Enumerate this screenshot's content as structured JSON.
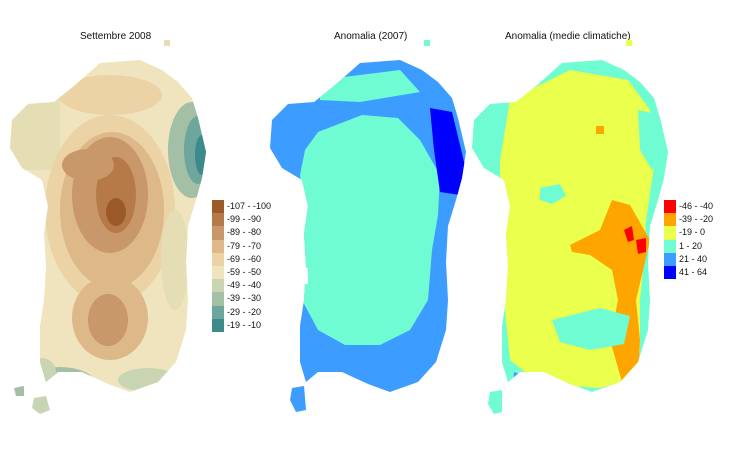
{
  "panels": [
    {
      "title": "Settembre 2008"
    },
    {
      "title": "Anomalia (2007)"
    },
    {
      "title": "Anomalia (medie climatiche)"
    }
  ],
  "legend_precip": {
    "items": [
      {
        "label": "-107 - -100",
        "color": "#9c5a2a"
      },
      {
        "label": "-99 - -90",
        "color": "#b57a48"
      },
      {
        "label": "-89 - -80",
        "color": "#c9986a"
      },
      {
        "label": "-79 - -70",
        "color": "#ddb98a"
      },
      {
        "label": "-69 - -60",
        "color": "#ebd3a6"
      },
      {
        "label": "-59 - -50",
        "color": "#f0e4bf"
      },
      {
        "label": "-49 - -40",
        "color": "#c9d4b3"
      },
      {
        "label": "-39 - -30",
        "color": "#a3bfa5"
      },
      {
        "label": "-29 - -20",
        "color": "#6ea59c"
      },
      {
        "label": "-19 - -10",
        "color": "#3c8a8b"
      }
    ]
  },
  "legend_anomaly": {
    "items": [
      {
        "label": "-46 - -40",
        "color": "#ff0000"
      },
      {
        "label": "-39 - -20",
        "color": "#ffa500"
      },
      {
        "label": "-19 - 0",
        "color": "#ebff4d"
      },
      {
        "label": "1 - 20",
        "color": "#6ffcd2"
      },
      {
        "label": "21 - 40",
        "color": "#3c9cff"
      },
      {
        "label": "41 - 64",
        "color": "#0000ff"
      }
    ]
  }
}
